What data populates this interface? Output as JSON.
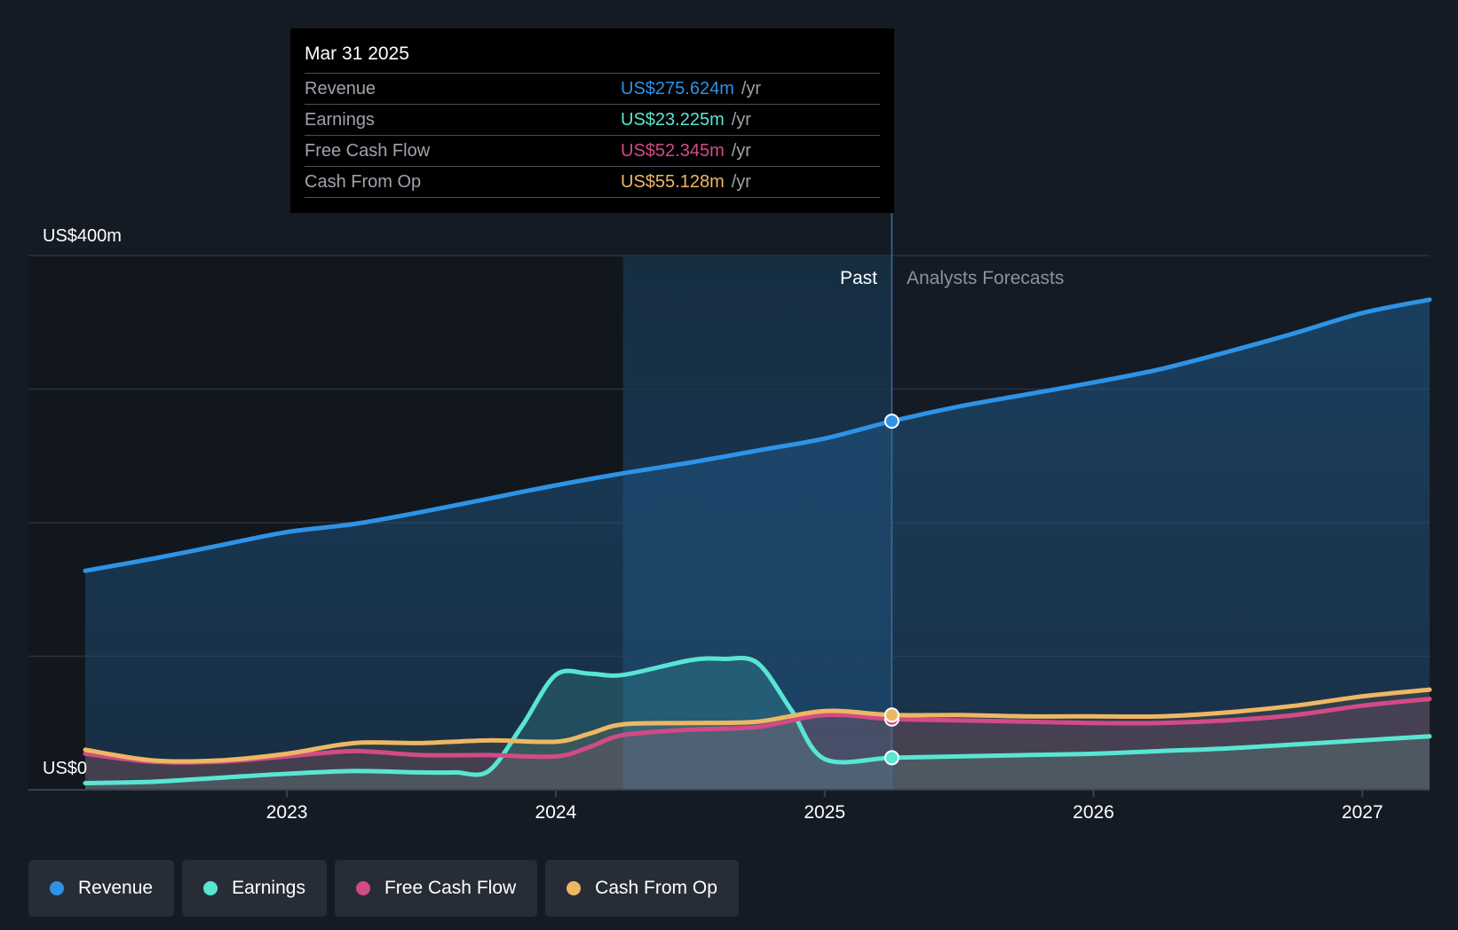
{
  "tooltip": {
    "date": "Mar 31 2025",
    "rows": [
      {
        "label": "Revenue",
        "value": "US$275.624m",
        "unit": "/yr",
        "color": "#2e93e6"
      },
      {
        "label": "Earnings",
        "value": "US$23.225m",
        "unit": "/yr",
        "color": "#58e6d4"
      },
      {
        "label": "Free Cash Flow",
        "value": "US$52.345m",
        "unit": "/yr",
        "color": "#d24a86"
      },
      {
        "label": "Cash From Op",
        "value": "US$55.128m",
        "unit": "/yr",
        "color": "#eeb764"
      }
    ]
  },
  "legend": [
    {
      "label": "Revenue",
      "color": "#2e93e6"
    },
    {
      "label": "Earnings",
      "color": "#58e6d4"
    },
    {
      "label": "Free Cash Flow",
      "color": "#d24a86"
    },
    {
      "label": "Cash From Op",
      "color": "#eeb764"
    }
  ],
  "chart_data": {
    "type": "line",
    "title": "",
    "y_unit_labels": {
      "top": "US$400m",
      "bottom": "US$0"
    },
    "ylim": [
      0,
      400
    ],
    "xlim": [
      2022.25,
      2027.25
    ],
    "x_ticks": [
      2023,
      2024,
      2025,
      2026,
      2027
    ],
    "x_tick_labels": [
      "2023",
      "2024",
      "2025",
      "2026",
      "2027"
    ],
    "grid_values": [
      0,
      100,
      200,
      300,
      400
    ],
    "past_label": "Past",
    "forecast_label": "Analysts Forecasts",
    "highlight_start": 2024.25,
    "divider_x": 2025.25,
    "series": [
      {
        "name": "Revenue",
        "color": "#2e93e6",
        "marker_x": 2025.25,
        "points": [
          [
            2022.25,
            164
          ],
          [
            2022.5,
            173
          ],
          [
            2022.75,
            183
          ],
          [
            2023.0,
            193
          ],
          [
            2023.25,
            199
          ],
          [
            2023.5,
            208
          ],
          [
            2023.75,
            218
          ],
          [
            2024.0,
            228
          ],
          [
            2024.25,
            237
          ],
          [
            2024.5,
            245
          ],
          [
            2024.75,
            254
          ],
          [
            2025.0,
            263
          ],
          [
            2025.25,
            276
          ],
          [
            2025.5,
            287
          ],
          [
            2025.75,
            296
          ],
          [
            2026.0,
            305
          ],
          [
            2026.25,
            315
          ],
          [
            2026.5,
            328
          ],
          [
            2026.75,
            342
          ],
          [
            2027.0,
            357
          ],
          [
            2027.25,
            367
          ]
        ]
      },
      {
        "name": "Earnings",
        "color": "#58e6d4",
        "marker_x": 2025.25,
        "points": [
          [
            2022.25,
            5
          ],
          [
            2022.5,
            6
          ],
          [
            2022.75,
            9
          ],
          [
            2023.0,
            12
          ],
          [
            2023.25,
            14
          ],
          [
            2023.5,
            13
          ],
          [
            2023.625,
            13
          ],
          [
            2023.75,
            14
          ],
          [
            2023.875,
            48
          ],
          [
            2024.0,
            86
          ],
          [
            2024.125,
            87
          ],
          [
            2024.25,
            86
          ],
          [
            2024.5,
            97
          ],
          [
            2024.625,
            98
          ],
          [
            2024.75,
            95
          ],
          [
            2024.875,
            60
          ],
          [
            2025.0,
            23
          ],
          [
            2025.25,
            24
          ],
          [
            2025.5,
            25
          ],
          [
            2025.75,
            26
          ],
          [
            2026.0,
            27
          ],
          [
            2026.25,
            29
          ],
          [
            2026.5,
            31
          ],
          [
            2026.75,
            34
          ],
          [
            2027.0,
            37
          ],
          [
            2027.25,
            40
          ]
        ]
      },
      {
        "name": "Free Cash Flow",
        "color": "#d24a86",
        "marker_x": 2025.25,
        "points": [
          [
            2022.25,
            27
          ],
          [
            2022.5,
            21
          ],
          [
            2022.75,
            21
          ],
          [
            2023.0,
            25
          ],
          [
            2023.25,
            29
          ],
          [
            2023.5,
            26
          ],
          [
            2023.75,
            26
          ],
          [
            2024.0,
            25
          ],
          [
            2024.125,
            32
          ],
          [
            2024.25,
            41
          ],
          [
            2024.5,
            45
          ],
          [
            2024.75,
            47
          ],
          [
            2025.0,
            56
          ],
          [
            2025.25,
            53
          ],
          [
            2025.5,
            52
          ],
          [
            2025.75,
            51
          ],
          [
            2026.0,
            50
          ],
          [
            2026.25,
            50
          ],
          [
            2026.5,
            52
          ],
          [
            2026.75,
            56
          ],
          [
            2027.0,
            63
          ],
          [
            2027.25,
            68
          ]
        ]
      },
      {
        "name": "Cash From Op",
        "color": "#eeb764",
        "marker_x": 2025.25,
        "points": [
          [
            2022.25,
            30
          ],
          [
            2022.5,
            22
          ],
          [
            2022.75,
            22
          ],
          [
            2023.0,
            27
          ],
          [
            2023.25,
            35
          ],
          [
            2023.5,
            35
          ],
          [
            2023.75,
            37
          ],
          [
            2024.0,
            36
          ],
          [
            2024.125,
            42
          ],
          [
            2024.25,
            49
          ],
          [
            2024.5,
            50
          ],
          [
            2024.75,
            51
          ],
          [
            2025.0,
            59
          ],
          [
            2025.25,
            56
          ],
          [
            2025.5,
            56
          ],
          [
            2025.75,
            55
          ],
          [
            2026.0,
            55
          ],
          [
            2026.25,
            55
          ],
          [
            2026.5,
            58
          ],
          [
            2026.75,
            63
          ],
          [
            2027.0,
            70
          ],
          [
            2027.25,
            75
          ]
        ]
      }
    ]
  }
}
